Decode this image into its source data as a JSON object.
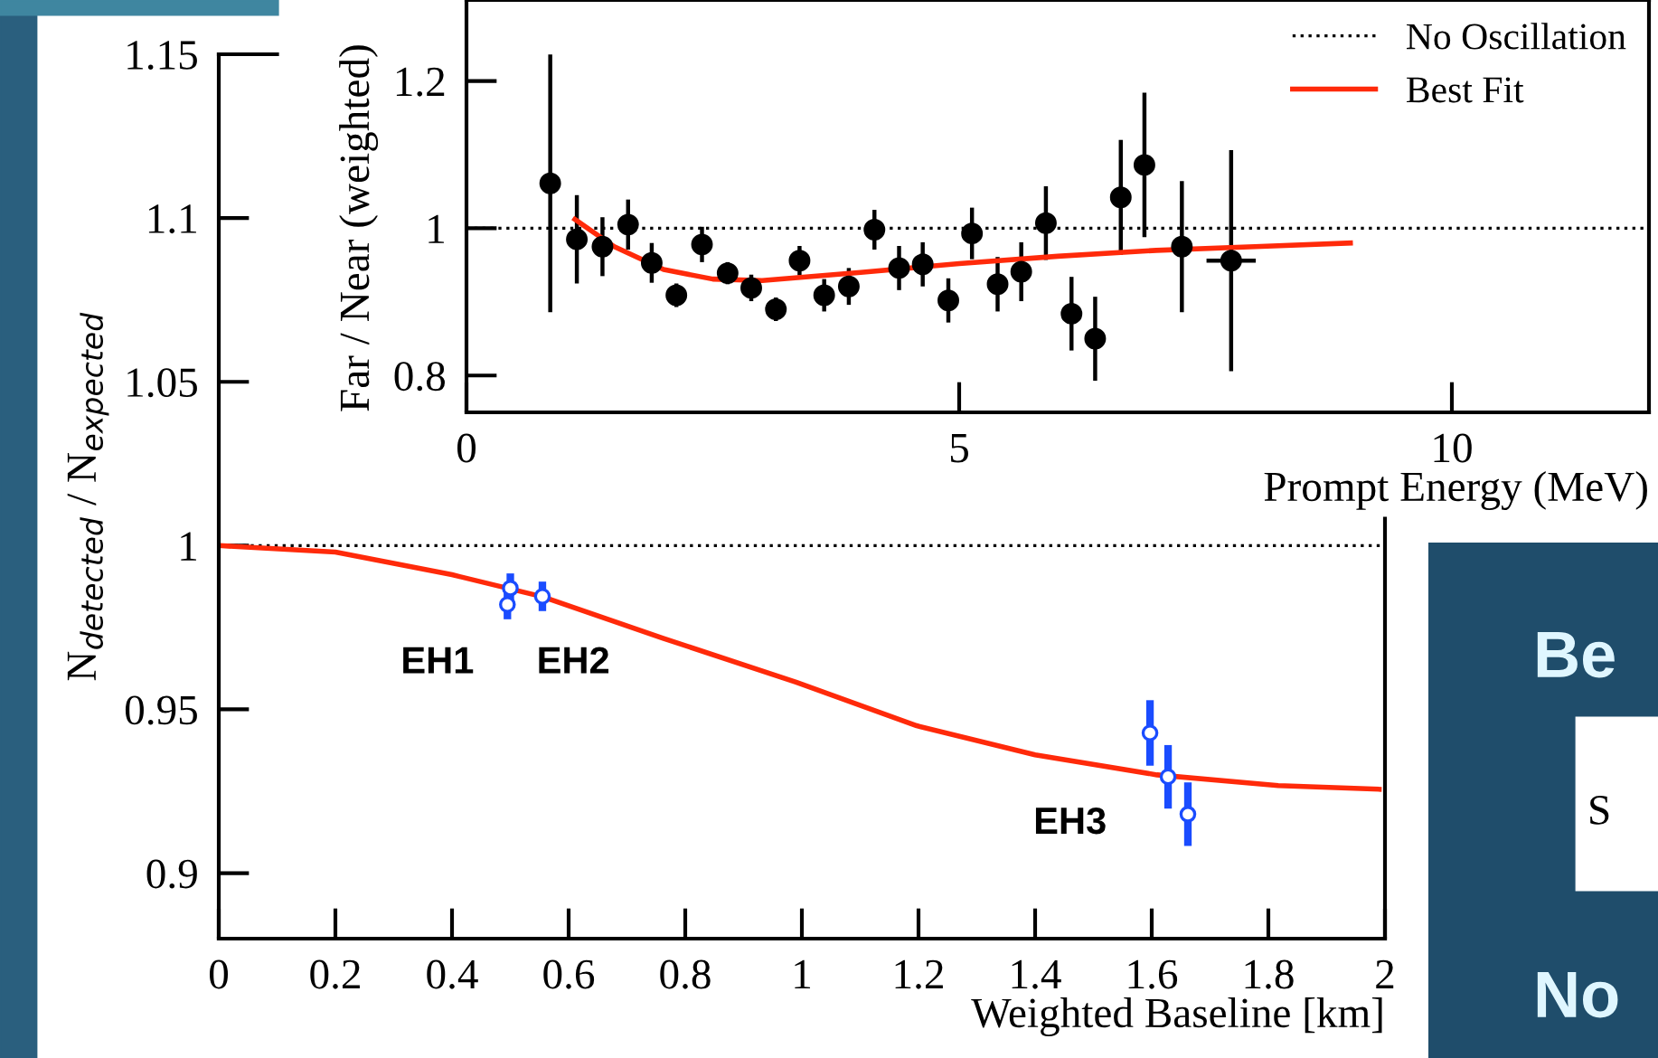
{
  "chart_data": [
    {
      "type": "scatter",
      "xlabel": "Prompt Energy (MeV)",
      "ylabel": "Far / Near (weighted)",
      "xlim": [
        0,
        12
      ],
      "xticks": [
        0,
        5,
        10
      ],
      "ylim": [
        0.75,
        1.31
      ],
      "yticks": [
        0.8,
        1,
        1.2
      ],
      "marker": "circle",
      "legend": "top right",
      "grid": false,
      "ref_lines": [
        {
          "axis": "y",
          "value": 1,
          "label": "No Oscillation",
          "color": "#000000",
          "line_style": "dotted"
        }
      ],
      "series": [
        {
          "type": "scatter",
          "color": "#000000",
          "x": [
            0.85,
            1.12,
            1.38,
            1.64,
            1.88,
            2.13,
            2.39,
            2.65,
            2.89,
            3.14,
            3.38,
            3.63,
            3.88,
            4.14,
            4.39,
            4.63,
            4.89,
            5.13,
            5.39,
            5.63,
            5.88,
            6.14,
            6.38,
            6.64,
            6.88,
            7.26,
            7.76
          ],
          "values": [
            1.061,
            0.985,
            0.975,
            1.005,
            0.953,
            0.909,
            0.978,
            0.939,
            0.919,
            0.89,
            0.956,
            0.909,
            0.921,
            0.998,
            0.946,
            0.951,
            0.902,
            0.993,
            0.924,
            0.941,
            1.007,
            0.884,
            0.85,
            1.042,
            1.086,
            0.975,
            0.956
          ],
          "errors": [
            0.175,
            0.06,
            0.04,
            0.034,
            0.027,
            0.016,
            0.024,
            0.015,
            0.018,
            0.016,
            0.02,
            0.022,
            0.025,
            0.027,
            0.03,
            0.03,
            0.03,
            0.035,
            0.037,
            0.04,
            0.05,
            0.05,
            0.057,
            0.078,
            0.098,
            0.089,
            0.15
          ],
          "xerrors": [
            null,
            null,
            null,
            null,
            null,
            null,
            null,
            null,
            null,
            null,
            null,
            null,
            null,
            null,
            null,
            null,
            null,
            null,
            null,
            null,
            null,
            null,
            null,
            null,
            null,
            null,
            0.25
          ]
        },
        {
          "type": "line",
          "name": "Best Fit",
          "color": "#ff2a0a",
          "marker": "none",
          "x": [
            1.1,
            1.5,
            2.0,
            2.5,
            3.0,
            4.0,
            5.0,
            6.0,
            7.0,
            8.0,
            8.97
          ],
          "values": [
            1.012,
            0.975,
            0.944,
            0.931,
            0.929,
            0.94,
            0.952,
            0.962,
            0.97,
            0.975,
            0.98
          ]
        }
      ]
    },
    {
      "type": "line",
      "xlabel": "Weighted Baseline [km]",
      "ylabel": "N$_{detected}$ / N$_{expected}$",
      "xlim": [
        0,
        2
      ],
      "xticks": [
        0,
        0.2,
        0.4,
        0.6,
        0.8,
        1,
        1.2,
        1.4,
        1.6,
        1.8,
        2
      ],
      "ylim": [
        0.88,
        1.15
      ],
      "yticks": [
        0.9,
        0.95,
        1,
        1.05,
        1.1,
        1.15
      ],
      "grid": false,
      "ref_lines": [
        {
          "axis": "y",
          "value": 1,
          "color": "#000000",
          "line_style": "dotted"
        }
      ],
      "annotations": [
        "EH1",
        "EH2",
        "EH3"
      ],
      "series": [
        {
          "type": "line",
          "color": "#ff2a0a",
          "marker": "none",
          "x": [
            0,
            0.2,
            0.4,
            0.555,
            0.762,
            0.99,
            1.197,
            1.4,
            1.609,
            1.817,
            1.99
          ],
          "values": [
            1.0,
            0.998,
            0.9911,
            0.9844,
            0.9717,
            0.9583,
            0.945,
            0.9361,
            0.93,
            0.9267,
            0.9256
          ]
        },
        {
          "type": "scatter",
          "color": "#1a4cff",
          "marker": "circle",
          "x": [
            0.5,
            0.495,
            0.555,
            1.597,
            1.628,
            1.662
          ],
          "values": [
            0.987,
            0.982,
            0.9845,
            0.9428,
            0.9294,
            0.918
          ],
          "errors": [
            0.0045,
            0.0045,
            0.0045,
            0.01,
            0.0097,
            0.0097
          ]
        }
      ]
    },
    {
      "type": "other",
      "annotations": [
        "Be",
        "S",
        "No"
      ]
    }
  ]
}
